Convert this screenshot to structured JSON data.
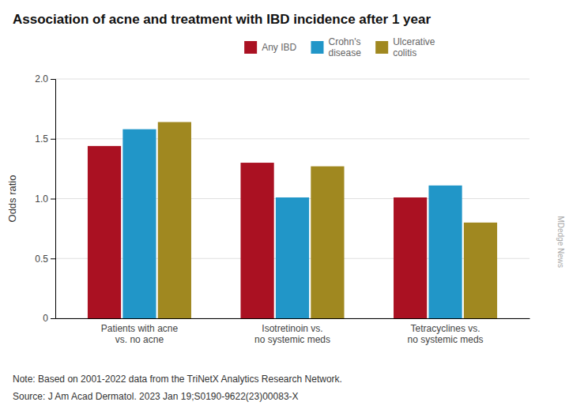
{
  "chart_data": {
    "type": "bar",
    "title": "Association of acne and treatment with IBD incidence after 1 year",
    "ylabel": "Odds ratio",
    "categories": [
      "Patients with acne\nvs. no acne",
      "Isotretinoin vs.\nno systemic meds",
      "Tetracyclines vs.\nno systemic meds"
    ],
    "series": [
      {
        "name": "Any IBD",
        "color": "#aa1122",
        "values": [
          1.44,
          1.3,
          1.01
        ]
      },
      {
        "name": "Crohn's\ndisease",
        "color": "#2196c8",
        "values": [
          1.58,
          1.01,
          1.11
        ]
      },
      {
        "name": "Ulcerative\ncolitis",
        "color": "#a08820",
        "values": [
          1.64,
          1.27,
          0.8
        ]
      }
    ],
    "ylim": [
      0,
      2.0
    ],
    "yticks": [
      0,
      0.5,
      {
        "value": 1.0,
        "label": "1.0"
      },
      1.5,
      {
        "value": 2.0,
        "label": "2.0"
      }
    ],
    "grid": true,
    "legend": "top",
    "annotations": [
      "Note: Based on 2001-2022 data from the TriNetX Analytics Research Network.",
      "Source: J Am Acad Dermatol. 2023 Jan 19;S0190-9622(23)00083-X",
      "MDedge News"
    ]
  }
}
